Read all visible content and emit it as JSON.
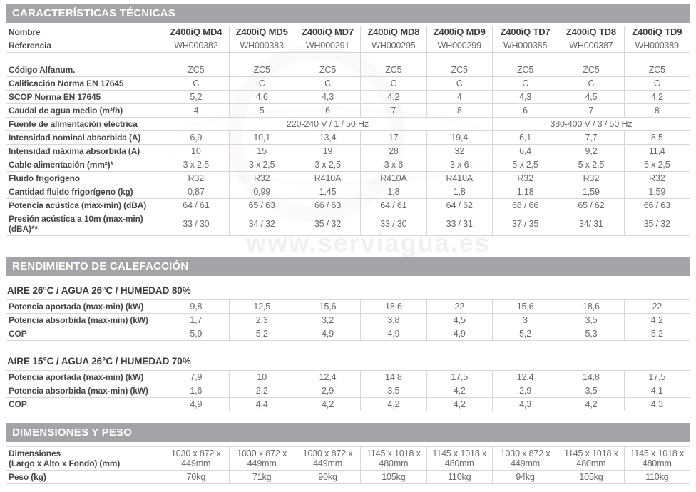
{
  "colors": {
    "bar_bg": "#a2a4a7",
    "bar_text": "#ffffff",
    "border": "#d6d7d9",
    "label_text": "#464749",
    "value_text": "#68696c"
  },
  "watermark": {
    "text": "www.serviagua.es"
  },
  "columns": [
    "Z400iQ MD4",
    "Z400iQ MD5",
    "Z400iQ MD7",
    "Z400iQ MD8",
    "Z400iQ MD9",
    "Z400iQ TD7",
    "Z400iQ TD8",
    "Z400iQ TD9"
  ],
  "sections": {
    "tecnicas": {
      "title": "CARACTERÍSTICAS TÉCNICAS",
      "rows": [
        {
          "header": true,
          "label": "Nombre"
        },
        {
          "label": "Referencia",
          "values": [
            "WH000382",
            "WH000383",
            "WH000291",
            "WH000295",
            "WH000299",
            "WH000385",
            "WH000387",
            "WH000389"
          ]
        },
        {
          "empty": true,
          "label": "",
          "values": [
            "",
            "",
            "",
            "",
            "",
            "",
            "",
            ""
          ]
        },
        {
          "label": "Código Alfanum.",
          "values": [
            "ZC5",
            "ZC5",
            "ZC5",
            "ZC5",
            "ZC5",
            "ZC5",
            "ZC5",
            "ZC5"
          ]
        },
        {
          "label": "Calificación Norma EN 17645",
          "values": [
            "C",
            "C",
            "C",
            "C",
            "C",
            "C",
            "C",
            "C"
          ]
        },
        {
          "label": "SCOP Norma EN 17645",
          "values": [
            "5,2",
            "4,6",
            "4,3",
            "4,2",
            "4",
            "4,3",
            "4,5",
            "4,2"
          ]
        },
        {
          "label": "Caudal de agua medio (m³/h)",
          "values": [
            "4",
            "5",
            "6",
            "7",
            "8",
            "6",
            "7",
            "8"
          ]
        },
        {
          "label": "Fuente de alimentación eléctrica",
          "spans": [
            {
              "text": "220-240 V / 1 / 50 Hz",
              "cols": 5
            },
            {
              "text": "380-400 V / 3 / 50 Hz",
              "cols": 3
            }
          ]
        },
        {
          "label": "Intensidad nominal absorbida (A)",
          "values": [
            "6,9",
            "10,1",
            "13,4",
            "17",
            "19,4",
            "6,1",
            "7,7",
            "8,5"
          ]
        },
        {
          "label": "Intensidad máxima absorbida (A)",
          "values": [
            "10",
            "15",
            "19",
            "28",
            "32",
            "6,4",
            "9,2",
            "11,4"
          ]
        },
        {
          "label": "Cable alimentación (mm²)*",
          "values": [
            "3 x 2,5",
            "3 x 2,5",
            "3 x 2,5",
            "3 x 6",
            "3 x 6",
            "5 x 2,5",
            "5 x 2,5",
            "5 x 2,5"
          ]
        },
        {
          "label": "Fluido frigorígeno",
          "values": [
            "R32",
            "R32",
            "R410A",
            "R410A",
            "R410A",
            "R32",
            "R32",
            "R32"
          ]
        },
        {
          "label": "Cantidad fluido frigorígeno (kg)",
          "values": [
            "0,87",
            "0,99",
            "1,45",
            "1,8",
            "1,8",
            "1,18",
            "1,59",
            "1,59"
          ]
        },
        {
          "label": "Potencia acústica (max-min) (dBA)",
          "values": [
            "64 / 61",
            "65 / 63",
            "66 / 63",
            "64 / 61",
            "64 / 62",
            "68 / 66",
            "65 / 62",
            "66 / 63"
          ]
        },
        {
          "label": "Presión acústica a 10m (max-min) (dBA)**",
          "values": [
            "33 / 30",
            "34 / 32",
            "35 / 32",
            "33 / 30",
            "33 / 31",
            "37 / 35",
            "34/ 31",
            "35 / 32"
          ]
        }
      ]
    },
    "rendimiento": {
      "title": "RENDIMIENTO DE CALEFACCIÓN",
      "blocks": [
        {
          "subtitle": "AIRE 26°C / AGUA 26°C / HUMEDAD 80%",
          "rows": [
            {
              "label": "Potencia aportada (max-min) (kW)",
              "values": [
                "9,8",
                "12,5",
                "15,6",
                "18,6",
                "22",
                "15,6",
                "18,6",
                "22"
              ]
            },
            {
              "label": "Potencia absorbida (max-min) (kW)",
              "values": [
                "1,7",
                "2,3",
                "3,2",
                "3,8",
                "4,5",
                "3",
                "3,5",
                "4,2"
              ]
            },
            {
              "label": "COP",
              "values": [
                "5,9",
                "5,2",
                "4,9",
                "4,9",
                "4,9",
                "5,2",
                "5,3",
                "5,2"
              ]
            }
          ]
        },
        {
          "subtitle": "AIRE 15°C / AGUA 26°C / HUMEDAD 70%",
          "rows": [
            {
              "label": "Potencia aportada (max-min) (kW)",
              "values": [
                "7,9",
                "10",
                "12,4",
                "14,8",
                "17,5",
                "12,4",
                "14,8",
                "17,5"
              ]
            },
            {
              "label": "Potencia absorbida (max-min) (kW)",
              "values": [
                "1,6",
                "2,2",
                "2,9",
                "3,5",
                "4,2",
                "2,9",
                "3,5",
                "4,1"
              ]
            },
            {
              "label": "COP",
              "values": [
                "4,9",
                "4,4",
                "4,2",
                "4,2",
                "4,2",
                "4,3",
                "4,2",
                "4,3"
              ]
            }
          ]
        }
      ]
    },
    "dimensiones": {
      "title": "DIMENSIONES Y PESO",
      "rows": [
        {
          "label": "Dimensiones",
          "sublabel": "(Largo x Alto x Fondo) (mm)",
          "values": [
            "1030 x 872 x 449mm",
            "1030 x 872 x 449mm",
            "1030 x 872 x 449mm",
            "1145 x 1018 x 480mm",
            "1145 x 1018 x 480mm",
            "1030 x 872 x 449mm",
            "1145 x 1018 x 480mm",
            "1145 x 1018 x 480mm"
          ]
        },
        {
          "label": "Peso (kg)",
          "values": [
            "70kg",
            "71kg",
            "90kg",
            "105kg",
            "110kg",
            "94kg",
            "105kg",
            "110kg"
          ]
        }
      ]
    }
  }
}
